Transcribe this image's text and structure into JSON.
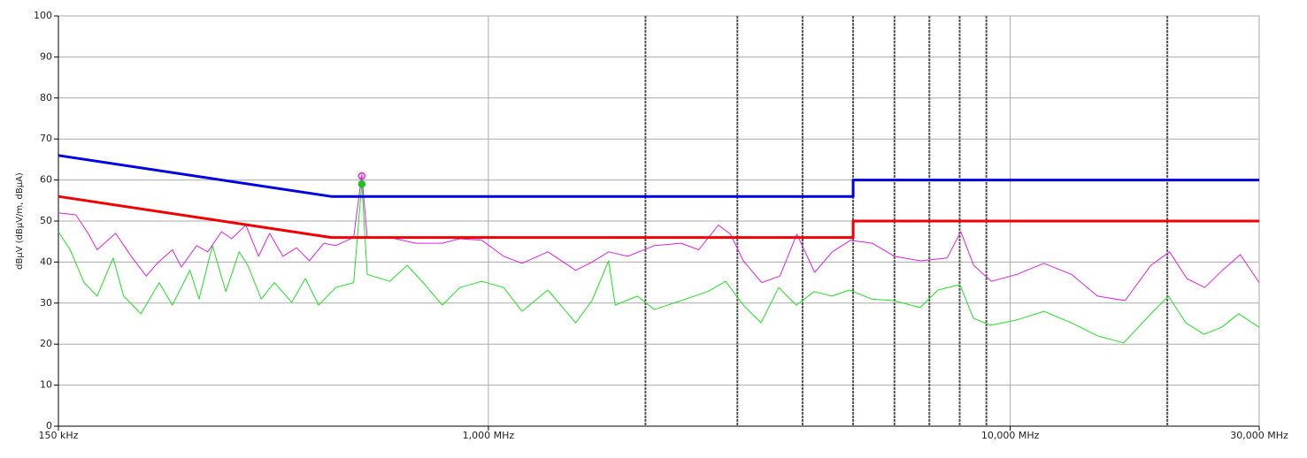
{
  "chart_data": {
    "type": "line",
    "y_label": "dBµV (dBµV/m, dBµA)",
    "xscale": "log",
    "xlim": [
      0.15,
      30
    ],
    "xticks": [
      {
        "value": 0.15,
        "label": "150 kHz"
      },
      {
        "value": 1,
        "label": "1,000 MHz"
      },
      {
        "value": 10,
        "label": "10,000 MHz"
      },
      {
        "value": 30,
        "label": "30,000 MHz"
      }
    ],
    "xgrid_extra": [
      2,
      3,
      4,
      5,
      6,
      7,
      8,
      9,
      20
    ],
    "ylim": [
      0,
      100
    ],
    "yticks": [
      0,
      10,
      20,
      30,
      40,
      50,
      60,
      70,
      80,
      90,
      100
    ],
    "grid": true,
    "series": [
      {
        "color": "#0000e0",
        "line_width": 3,
        "x": [
          0.15,
          0.5,
          5,
          5,
          30
        ],
        "values": [
          66,
          56,
          56,
          60,
          60
        ]
      },
      {
        "color": "#f00000",
        "line_width": 3,
        "x": [
          0.15,
          0.5,
          5,
          5,
          30
        ],
        "values": [
          56,
          46,
          46,
          50,
          50
        ]
      },
      {
        "color": "#e020e0",
        "line_width": 1,
        "x": [
          0.15,
          0.162,
          0.171,
          0.178,
          0.193,
          0.208,
          0.221,
          0.232,
          0.248,
          0.258,
          0.276,
          0.29,
          0.308,
          0.322,
          0.343,
          0.363,
          0.381,
          0.404,
          0.429,
          0.454,
          0.484,
          0.51,
          0.552,
          0.572,
          0.586,
          0.647,
          0.726,
          0.816,
          0.882,
          0.972,
          1.07,
          1.16,
          1.3,
          1.47,
          1.58,
          1.7,
          1.85,
          2.08,
          2.34,
          2.53,
          2.76,
          2.91,
          3.08,
          3.34,
          3.62,
          3.9,
          4.22,
          4.56,
          4.94,
          5.44,
          6.0,
          6.73,
          7.57,
          8.04,
          8.51,
          9.2,
          10.3,
          11.6,
          13.1,
          14.7,
          16.6,
          18.6,
          20.2,
          21.8,
          23.6,
          25.5,
          27.6,
          30
        ],
        "values": [
          52,
          51.5,
          47,
          43,
          47,
          41,
          36.6,
          39.7,
          43,
          38.8,
          44,
          42.5,
          47.4,
          45.7,
          49,
          41.4,
          47,
          41.4,
          43.5,
          40.3,
          44.6,
          44,
          46,
          61.4,
          46,
          46,
          44.6,
          44.6,
          45.7,
          45.3,
          41.4,
          39.7,
          42.5,
          38,
          40,
          42.5,
          41.4,
          44,
          44.6,
          43,
          49,
          46.8,
          40.3,
          35,
          36.6,
          46.8,
          37.5,
          42.5,
          45.3,
          44.6,
          41.4,
          40.3,
          41,
          47.4,
          39.2,
          35.3,
          37,
          39.7,
          37,
          31.7,
          30.6,
          39.2,
          42.5,
          36,
          33.8,
          38,
          41.8,
          35
        ]
      },
      {
        "color": "#20e020",
        "line_width": 1,
        "x": [
          0.15,
          0.158,
          0.168,
          0.178,
          0.191,
          0.2,
          0.216,
          0.234,
          0.248,
          0.268,
          0.279,
          0.296,
          0.314,
          0.333,
          0.346,
          0.367,
          0.389,
          0.42,
          0.446,
          0.473,
          0.51,
          0.552,
          0.572,
          0.586,
          0.647,
          0.699,
          0.756,
          0.816,
          0.882,
          0.972,
          1.07,
          1.16,
          1.3,
          1.47,
          1.58,
          1.7,
          1.75,
          1.93,
          2.08,
          2.34,
          2.63,
          2.85,
          3.08,
          3.33,
          3.6,
          3.89,
          4.21,
          4.55,
          4.92,
          5.42,
          5.98,
          6.72,
          7.27,
          8.01,
          8.5,
          9.18,
          10.3,
          11.6,
          13.1,
          14.7,
          16.5,
          18.6,
          20.1,
          21.7,
          23.5,
          25.4,
          27.4,
          30
        ],
        "values": [
          47.4,
          43,
          35,
          31.7,
          41,
          31.7,
          27.4,
          35,
          29.5,
          38,
          31,
          44,
          32.8,
          42.5,
          39.2,
          31,
          35,
          30.2,
          36,
          29.5,
          33.8,
          35,
          59.3,
          37,
          35.3,
          39.2,
          34.5,
          29.5,
          33.8,
          35.3,
          33.8,
          28,
          33.2,
          25.2,
          30.6,
          40.3,
          29.5,
          31.7,
          28.4,
          30.6,
          32.8,
          35.3,
          29.5,
          25.2,
          33.8,
          29.5,
          32.8,
          31.7,
          33.2,
          31,
          30.6,
          28.9,
          33.2,
          34.5,
          26.3,
          24.6,
          25.9,
          28,
          25.2,
          22,
          20.3,
          27.4,
          31.7,
          25.2,
          22.4,
          24.1,
          27.4,
          24.1
        ]
      }
    ],
    "peaks": [
      {
        "x": 0.572,
        "value": 61,
        "color": "#e020e0"
      },
      {
        "x": 0.572,
        "value": 59,
        "color": "#20c020"
      }
    ]
  }
}
